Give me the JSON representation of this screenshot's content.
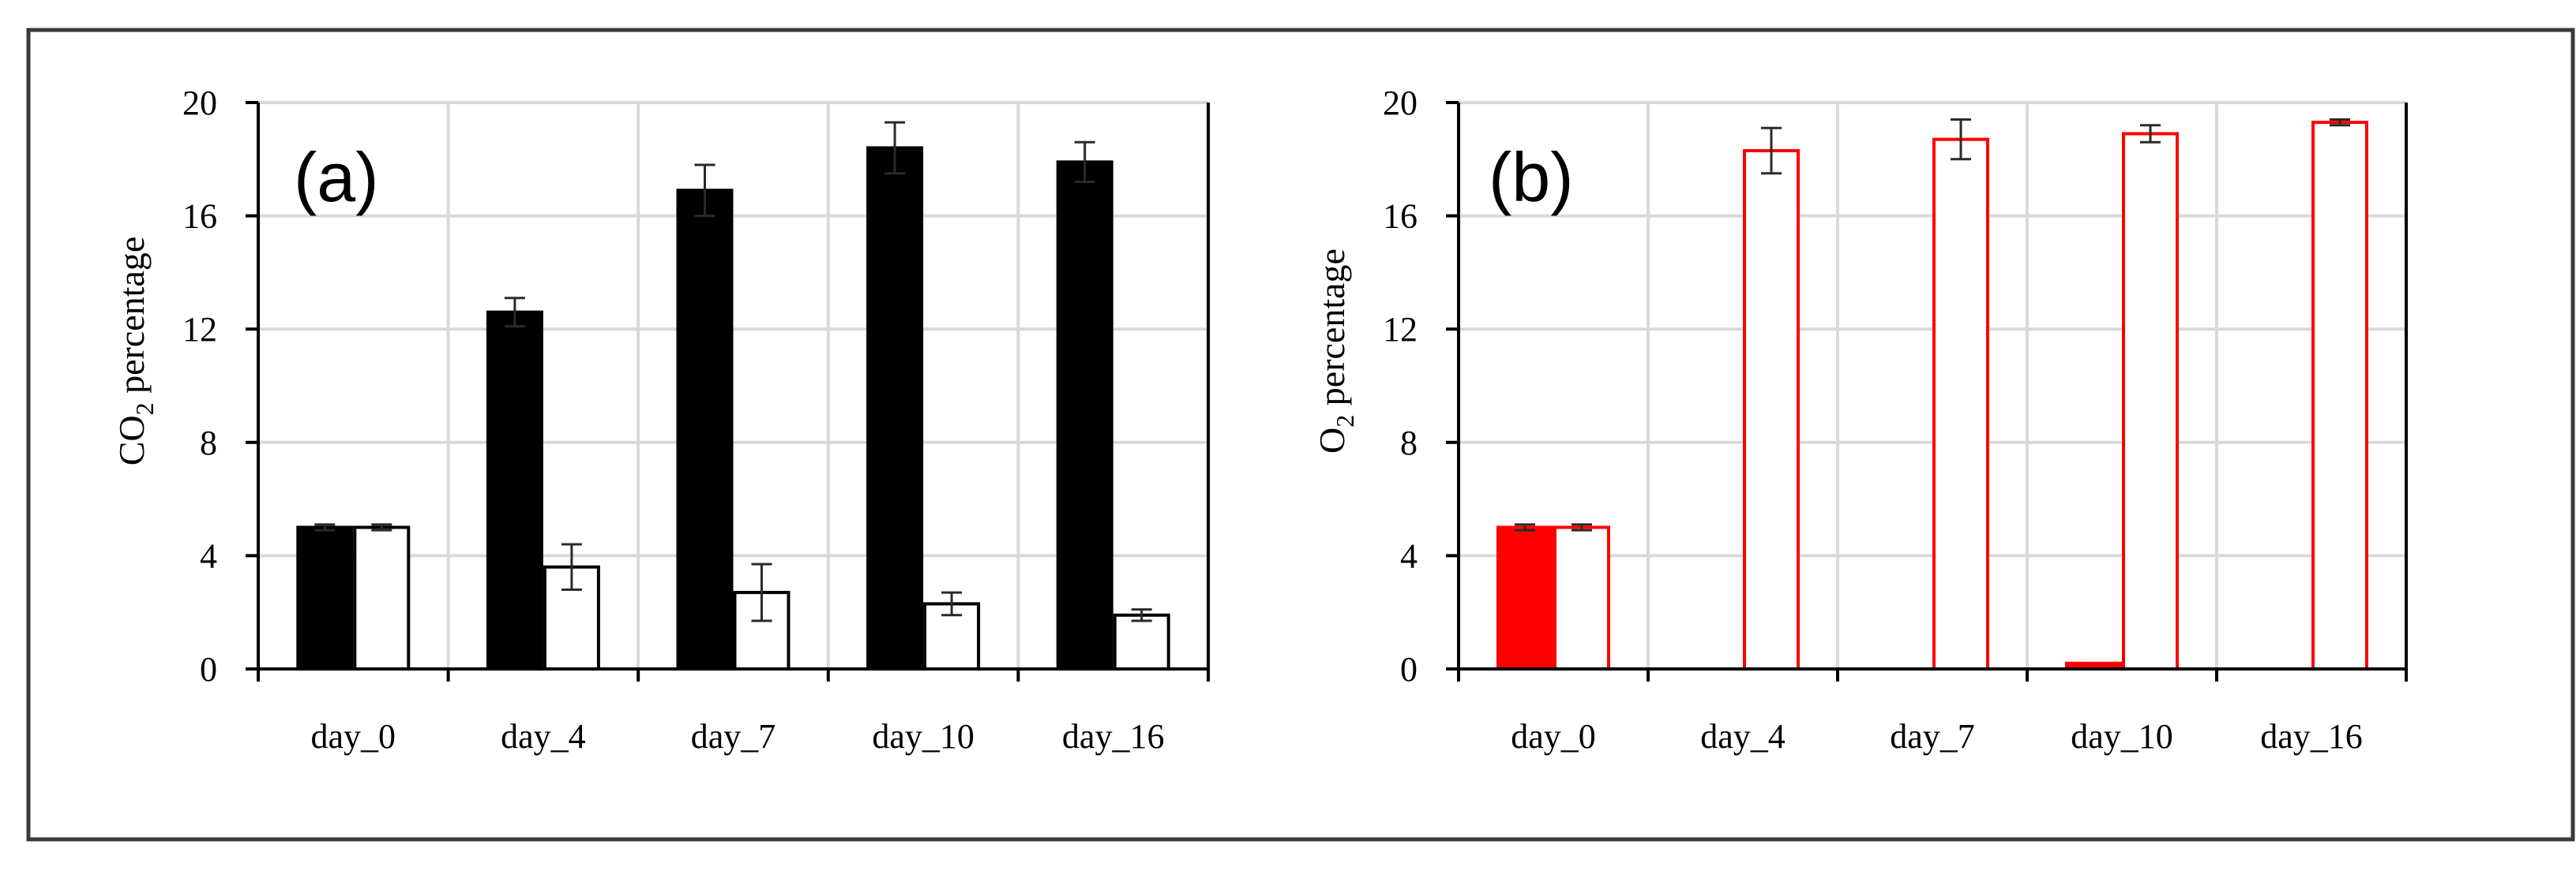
{
  "colors": {
    "background": "#ffffff",
    "frame": "#3a3a3a",
    "grid": "#d9d9d9",
    "axis": "#000000",
    "error_bar": "#2a2a2a"
  },
  "chart_data": [
    {
      "type": "bar",
      "panel_label": "(a)",
      "ylabel": {
        "prefix": "CO",
        "subscript": "2",
        "suffix": " percentage"
      },
      "ylim": [
        0,
        20
      ],
      "yticks": [
        0,
        4,
        8,
        12,
        16,
        20
      ],
      "grid": true,
      "categories": [
        "day_0",
        "day_4",
        "day_7",
        "day_10",
        "day_16"
      ],
      "series": [
        {
          "values": [
            5.0,
            12.6,
            16.9,
            18.4,
            17.9
          ],
          "errors": [
            0.1,
            0.5,
            0.9,
            0.9,
            0.7
          ],
          "fill": "#000000",
          "stroke": "#000000"
        },
        {
          "values": [
            5.0,
            3.6,
            2.7,
            2.3,
            1.9
          ],
          "errors": [
            0.1,
            0.8,
            1.0,
            0.4,
            0.2
          ],
          "fill": "#ffffff",
          "stroke": "#000000"
        }
      ]
    },
    {
      "type": "bar",
      "panel_label": "(b)",
      "ylabel": {
        "prefix": "O",
        "subscript": "2",
        "suffix": " percentage"
      },
      "ylim": [
        0,
        20
      ],
      "yticks": [
        0,
        4,
        8,
        12,
        16,
        20
      ],
      "grid": true,
      "categories": [
        "day_0",
        "day_4",
        "day_7",
        "day_10",
        "day_16"
      ],
      "series": [
        {
          "values": [
            5.0,
            0,
            0,
            0.2,
            0
          ],
          "errors": [
            0.1,
            0,
            0,
            0,
            0
          ],
          "fill": "#ff0000",
          "stroke": "#ff0000"
        },
        {
          "values": [
            5.0,
            18.3,
            18.7,
            18.9,
            19.3
          ],
          "errors": [
            0.1,
            0.8,
            0.7,
            0.3,
            0.1
          ],
          "fill": "#ffffff",
          "stroke": "#ff0000"
        }
      ]
    }
  ]
}
